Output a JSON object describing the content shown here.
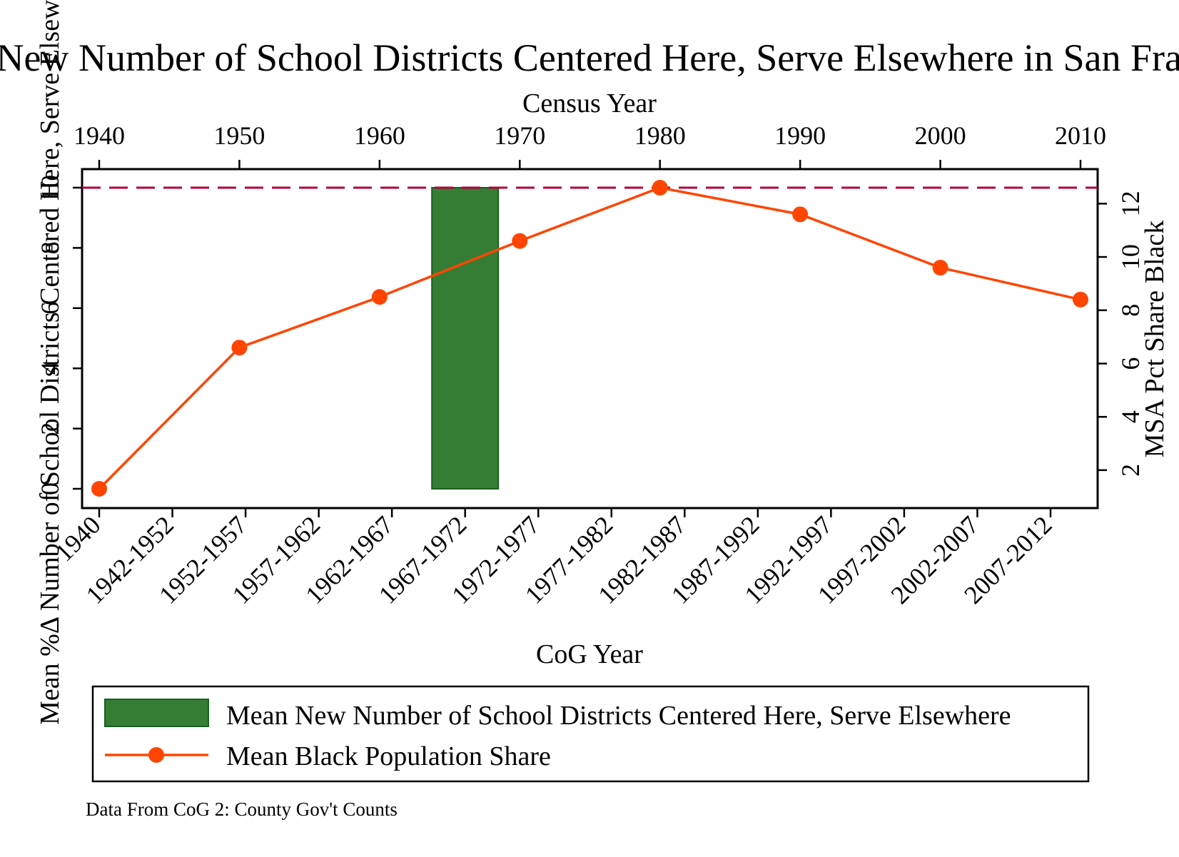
{
  "chart_data": {
    "type": "bar",
    "title": "Mean New Number of School Districts Centered Here, Serve Elsewhere in San Francisco",
    "top_axis": {
      "label": "Census Year",
      "ticks": [
        "1940",
        "1950",
        "1960",
        "1970",
        "1980",
        "1990",
        "2000",
        "2010"
      ],
      "range": [
        1940,
        2010
      ]
    },
    "bottom_axis": {
      "label": "CoG Year",
      "categories": [
        "1940",
        "1942-1952",
        "1952-1957",
        "1957-1962",
        "1962-1967",
        "1967-1972",
        "1972-1977",
        "1977-1982",
        "1982-1987",
        "1987-1992",
        "1992-1997",
        "1997-2002",
        "2002-2007",
        "2007-2012"
      ]
    },
    "left_axis": {
      "label": "Mean %Δ Number of School Districts Centered Here, Serve Elsewhere",
      "ticks": [
        "0",
        "2",
        "4",
        "6",
        "8",
        "10"
      ],
      "range": [
        0,
        10
      ]
    },
    "right_axis": {
      "label": "MSA Pct Share Black",
      "ticks": [
        "2",
        "4",
        "6",
        "8",
        "10",
        "12"
      ],
      "range": [
        1.3,
        12.6
      ]
    },
    "series": [
      {
        "name": "Mean New Number of School Districts Centered Here, Serve Elsewhere",
        "kind": "bar",
        "axis": "left",
        "color": "#2e7d32",
        "category": "1967-1972",
        "value": 10
      },
      {
        "name": "Mean Black Population Share",
        "kind": "line",
        "axis": "right",
        "color": "#ff4500",
        "x": [
          1940,
          1950,
          1960,
          1970,
          1980,
          1990,
          2000,
          2010
        ],
        "y": [
          1.3,
          6.6,
          8.5,
          10.6,
          12.6,
          11.6,
          9.6,
          8.4
        ]
      }
    ],
    "reference_line": {
      "axis": "left",
      "value": 10,
      "color": "#b5003b",
      "style": "dashed"
    },
    "legend": {
      "placement": "bottom",
      "entries": [
        "Mean New Number of School Districts Centered Here, Serve Elsewhere",
        "Mean Black Population Share"
      ]
    },
    "note": "Data From CoG 2: County Gov't Counts",
    "grid": false
  }
}
